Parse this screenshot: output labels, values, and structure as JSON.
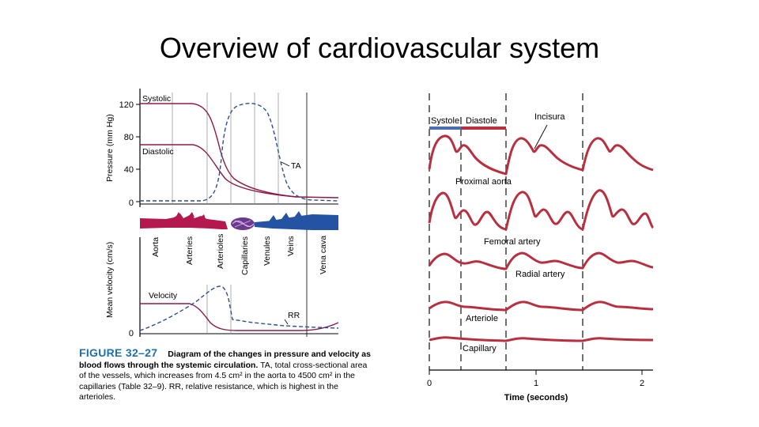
{
  "slide": {
    "title": "Overview of cardiovascular system"
  },
  "left_figure": {
    "pressure_axis": {
      "label": "Pressure (mm Hg)",
      "ticks": [
        "120",
        "80",
        "40",
        "0"
      ]
    },
    "curve_labels": {
      "systolic": "Systolic",
      "diastolic": "Diastolic",
      "ta": "TA"
    },
    "vessels": [
      "Aorta",
      "Arteries",
      "Arterioles",
      "Capillaries",
      "Venules",
      "Veins",
      "Vena cava"
    ],
    "velocity_axis": {
      "label": "Mean velocity (cm/s)",
      "ticks": [
        "0"
      ]
    },
    "velocity_labels": {
      "velocity": "Velocity",
      "rr": "RR"
    },
    "caption": {
      "figure": "FIGURE 32–27",
      "bold_text": "Diagram of the changes in pressure and velocity as blood flows through the systemic circulation.",
      "text": "TA, total cross-sectional area of the vessels, which increases from 4.5 cm² in the aorta to 4500 cm² in the capillaries (Table 32–9). RR, relative resistance, which is highest in the arterioles."
    }
  },
  "right_figure": {
    "phases": {
      "systole": "Systole",
      "diastole": "Diastole"
    },
    "incisura_label": "Incisura",
    "waveform_labels": [
      "Proximal aorta",
      "Femoral artery",
      "Radial artery",
      "Arteriole",
      "Capillary"
    ],
    "x_axis": {
      "label": "Time (seconds)",
      "ticks": [
        "0",
        "1",
        "2"
      ]
    },
    "colors": {
      "waveform": "#b8303f",
      "systole_bar": "#4a6fb0",
      "diastole_bar": "#b8303f"
    }
  }
}
